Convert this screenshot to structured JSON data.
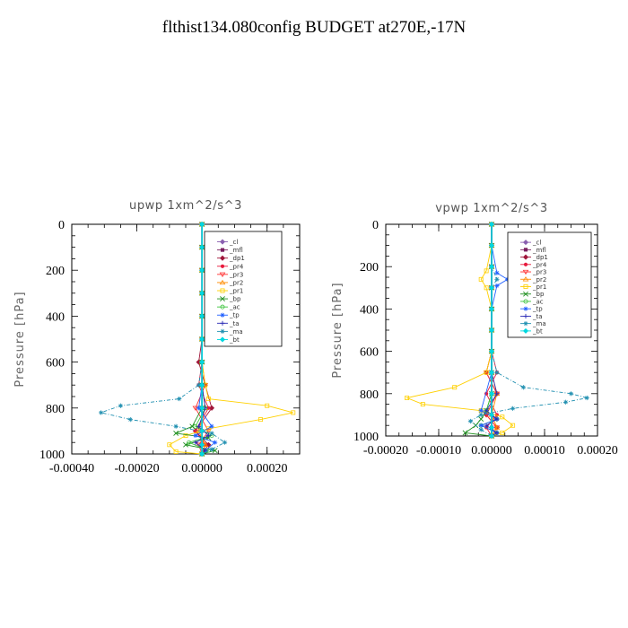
{
  "page": {
    "title": "flthist134.080config  BUDGET at270E,-17N"
  },
  "chart_data": [
    {
      "type": "line",
      "title": "upwp   1xm^2/s^3",
      "ylabel": "Pressure  [hPa]",
      "xlabel": "",
      "xlim": [
        -0.0004,
        0.0003
      ],
      "ylim": [
        1000,
        0
      ],
      "xticks": [
        -0.0004,
        -0.0002,
        0.0,
        0.0002
      ],
      "xticklabels": [
        "-0.00040",
        "-0.00020",
        "0.00000",
        "0.00020"
      ],
      "yticks": [
        0,
        200,
        400,
        600,
        800,
        1000
      ],
      "yticklabels": [
        "0",
        "200",
        "400",
        "600",
        "800",
        "1000"
      ],
      "legend": "top-right inside",
      "series": [
        {
          "name": "_cl",
          "color": "#8a5fb0",
          "marker": "diamond",
          "x": [
            0,
            0,
            0,
            0,
            0,
            0,
            0,
            0,
            0,
            0,
            0,
            0
          ],
          "y": [
            0,
            100,
            200,
            300,
            400,
            500,
            600,
            700,
            800,
            900,
            960,
            1000
          ]
        },
        {
          "name": "_mfl",
          "color": "#7a1f5f",
          "marker": "square",
          "x": [
            0,
            0,
            0,
            0,
            0,
            0,
            0,
            0,
            0,
            0,
            0,
            0
          ],
          "y": [
            0,
            100,
            200,
            300,
            400,
            500,
            600,
            700,
            800,
            900,
            960,
            1000
          ]
        },
        {
          "name": "_dp1",
          "color": "#a0163a",
          "marker": "diamond",
          "x": [
            0,
            0,
            0,
            0,
            0,
            0,
            -1e-05,
            1e-05,
            3e-05,
            -2e-05,
            2e-05,
            0.0
          ],
          "y": [
            0,
            100,
            200,
            300,
            400,
            500,
            600,
            700,
            800,
            900,
            960,
            1000
          ]
        },
        {
          "name": "_pr4",
          "color": "#e8193c",
          "marker": "circle",
          "x": [
            0,
            0,
            0,
            0,
            0,
            0,
            0,
            -1e-05,
            2e-05,
            -2e-05,
            1e-05,
            0
          ],
          "y": [
            0,
            100,
            200,
            300,
            400,
            500,
            600,
            700,
            800,
            900,
            960,
            1000
          ]
        },
        {
          "name": "_pr3",
          "color": "#ff3030",
          "marker": "triangle-down",
          "x": [
            0,
            0,
            0,
            0,
            0,
            0,
            0,
            1e-05,
            -2e-05,
            2e-05,
            -1e-05,
            0
          ],
          "y": [
            0,
            100,
            200,
            300,
            400,
            500,
            600,
            700,
            800,
            900,
            960,
            1000
          ]
        },
        {
          "name": "_pr2",
          "color": "#ff8c00",
          "marker": "triangle-up",
          "x": [
            0,
            0,
            0,
            0,
            0,
            0,
            0,
            0,
            1e-05,
            -1e-05,
            1e-05,
            0
          ],
          "y": [
            0,
            100,
            200,
            300,
            400,
            500,
            600,
            700,
            800,
            900,
            960,
            1000
          ]
        },
        {
          "name": "_pr1",
          "color": "#ffd000",
          "marker": "square-open",
          "x": [
            0,
            0,
            0,
            0,
            0,
            0,
            0,
            1e-05,
            2e-05,
            0.0002,
            0.00028,
            0.00018,
            2e-05,
            -5e-05,
            -0.0001,
            -8e-05,
            0.0
          ],
          "y": [
            0,
            100,
            200,
            300,
            400,
            500,
            600,
            700,
            760,
            790,
            820,
            850,
            890,
            920,
            960,
            990,
            1000
          ]
        },
        {
          "name": "_bp",
          "color": "#1f8f1f",
          "marker": "x",
          "x": [
            0,
            0,
            0,
            0,
            0,
            0,
            0,
            0,
            0,
            -3e-05,
            -8e-05,
            2e-05,
            -5e-05,
            4e-05,
            0
          ],
          "y": [
            0,
            100,
            200,
            300,
            400,
            500,
            600,
            700,
            800,
            880,
            910,
            930,
            960,
            985,
            1000
          ]
        },
        {
          "name": "_ac",
          "color": "#3ec43e",
          "marker": "circle-open",
          "x": [
            0,
            0,
            0,
            0,
            0,
            0,
            0,
            0,
            1e-05,
            -2e-05,
            3e-05,
            -4e-05,
            2e-05,
            0
          ],
          "y": [
            0,
            100,
            200,
            300,
            400,
            500,
            600,
            700,
            800,
            880,
            920,
            950,
            985,
            1000
          ]
        },
        {
          "name": "_tp",
          "color": "#2060ff",
          "marker": "asterisk",
          "x": [
            0,
            0,
            0,
            0,
            0,
            0,
            0,
            0,
            -1e-05,
            3e-05,
            -2e-05,
            4e-05,
            1e-05,
            0
          ],
          "y": [
            0,
            100,
            200,
            300,
            400,
            500,
            600,
            700,
            800,
            880,
            920,
            950,
            985,
            1000
          ]
        },
        {
          "name": "_ta",
          "color": "#2b2bb5",
          "marker": "plus",
          "x": [
            0,
            0,
            0,
            0,
            0,
            0,
            0,
            0,
            1e-05,
            -1e-05,
            2e-05,
            -2e-05,
            1e-05,
            0
          ],
          "y": [
            0,
            100,
            200,
            300,
            400,
            500,
            600,
            700,
            800,
            880,
            920,
            950,
            985,
            1000
          ]
        },
        {
          "name": "_ma",
          "color": "#1f8fb0",
          "marker": "asterisk",
          "x": [
            0,
            0,
            0,
            0,
            0,
            0,
            0,
            -1e-05,
            -7e-05,
            -0.00025,
            -0.00031,
            -0.00022,
            -8e-05,
            3e-05,
            7e-05,
            3e-05,
            0
          ],
          "y": [
            0,
            100,
            200,
            300,
            400,
            500,
            600,
            700,
            760,
            790,
            820,
            850,
            880,
            910,
            950,
            980,
            1000
          ]
        },
        {
          "name": "_bt",
          "color": "#00d8e0",
          "marker": "diamond-filled",
          "x": [
            0,
            0,
            0,
            0,
            0,
            0,
            0,
            0,
            0,
            0,
            0,
            0
          ],
          "y": [
            0,
            100,
            200,
            300,
            400,
            500,
            600,
            700,
            800,
            900,
            960,
            1000
          ]
        }
      ]
    },
    {
      "type": "line",
      "title": "vpwp   1xm^2/s^3",
      "ylabel": "Pressure  [hPa]",
      "xlabel": "",
      "xlim": [
        -0.0002,
        0.0002
      ],
      "ylim": [
        1000,
        0
      ],
      "xticks": [
        -0.0002,
        -0.0001,
        0.0,
        0.0001,
        0.0002
      ],
      "xticklabels": [
        "-0.00020",
        "-0.00010",
        "0.00000",
        "0.00010",
        "0.00020"
      ],
      "yticks": [
        0,
        200,
        400,
        600,
        800,
        1000
      ],
      "yticklabels": [
        "0",
        "200",
        "400",
        "600",
        "800",
        "1000"
      ],
      "legend": "top-right inside",
      "series": [
        {
          "name": "_cl",
          "color": "#8a5fb0",
          "marker": "diamond",
          "x": [
            0,
            0,
            0,
            0,
            0,
            0,
            0,
            0,
            0,
            0,
            0,
            0
          ],
          "y": [
            0,
            100,
            200,
            300,
            400,
            500,
            600,
            700,
            800,
            900,
            960,
            1000
          ]
        },
        {
          "name": "_mfl",
          "color": "#7a1f5f",
          "marker": "square",
          "x": [
            0,
            0,
            0,
            0,
            0,
            0,
            0,
            0,
            0,
            0,
            0,
            0
          ],
          "y": [
            0,
            100,
            200,
            300,
            400,
            500,
            600,
            700,
            800,
            900,
            960,
            1000
          ]
        },
        {
          "name": "_dp1",
          "color": "#a0163a",
          "marker": "diamond",
          "x": [
            0,
            0,
            0,
            0,
            0,
            0,
            0,
            -1e-05,
            1e-05,
            -1e-05,
            1e-05,
            0
          ],
          "y": [
            0,
            100,
            200,
            300,
            400,
            500,
            600,
            700,
            800,
            900,
            960,
            1000
          ]
        },
        {
          "name": "_pr4",
          "color": "#e8193c",
          "marker": "circle",
          "x": [
            0,
            0,
            0,
            0,
            0,
            0,
            0,
            1e-05,
            -1e-05,
            1e-05,
            -1e-05,
            0
          ],
          "y": [
            0,
            100,
            200,
            300,
            400,
            500,
            600,
            700,
            800,
            900,
            960,
            1000
          ]
        },
        {
          "name": "_pr3",
          "color": "#ff3030",
          "marker": "triangle-down",
          "x": [
            0,
            0,
            0,
            0,
            0,
            0,
            0,
            -1e-05,
            1e-05,
            -1e-05,
            1e-05,
            0
          ],
          "y": [
            0,
            100,
            200,
            300,
            400,
            500,
            600,
            700,
            800,
            900,
            960,
            1000
          ]
        },
        {
          "name": "_pr2",
          "color": "#ff8c00",
          "marker": "triangle-up",
          "x": [
            0,
            0,
            0,
            0,
            0,
            0,
            0,
            0,
            1e-05,
            0,
            1e-05,
            0
          ],
          "y": [
            0,
            100,
            200,
            300,
            400,
            500,
            600,
            700,
            800,
            900,
            960,
            1000
          ]
        },
        {
          "name": "_pr1",
          "color": "#ffd000",
          "marker": "square-open",
          "x": [
            0,
            0,
            -1e-05,
            -2e-05,
            -1e-05,
            0,
            0,
            0,
            -1e-05,
            -7e-05,
            -0.00016,
            -0.00013,
            -2e-05,
            2e-05,
            4e-05,
            2e-05,
            0
          ],
          "y": [
            0,
            100,
            220,
            260,
            300,
            400,
            500,
            600,
            700,
            770,
            820,
            850,
            880,
            910,
            950,
            985,
            1000
          ]
        },
        {
          "name": "_bp",
          "color": "#1f8f1f",
          "marker": "x",
          "x": [
            0,
            0,
            0,
            0,
            0,
            0,
            0,
            0,
            0,
            -1e-05,
            -2e-05,
            -3e-05,
            -5e-05,
            0
          ],
          "y": [
            0,
            100,
            200,
            300,
            400,
            500,
            600,
            700,
            800,
            880,
            920,
            950,
            985,
            1000
          ]
        },
        {
          "name": "_ac",
          "color": "#3ec43e",
          "marker": "circle-open",
          "x": [
            0,
            0,
            0,
            0,
            0,
            0,
            0,
            0,
            0,
            -1e-05,
            1e-05,
            -2e-05,
            1e-05,
            0
          ],
          "y": [
            0,
            100,
            200,
            300,
            400,
            500,
            600,
            700,
            800,
            880,
            920,
            950,
            985,
            1000
          ]
        },
        {
          "name": "_tp",
          "color": "#2060ff",
          "marker": "asterisk",
          "x": [
            0,
            0,
            1e-05,
            3e-05,
            1e-05,
            0,
            0,
            0,
            0,
            -2e-05,
            1e-05,
            -2e-05,
            1e-05,
            0
          ],
          "y": [
            0,
            100,
            230,
            260,
            290,
            400,
            500,
            600,
            700,
            880,
            920,
            950,
            985,
            1000
          ]
        },
        {
          "name": "_ta",
          "color": "#2b2bb5",
          "marker": "plus",
          "x": [
            0,
            0,
            0,
            0,
            0,
            0,
            0,
            0,
            1e-05,
            -1e-05,
            1e-05,
            -1e-05,
            1e-05,
            0
          ],
          "y": [
            0,
            100,
            200,
            300,
            400,
            500,
            600,
            700,
            800,
            880,
            920,
            950,
            985,
            1000
          ]
        },
        {
          "name": "_ma",
          "color": "#1f8fb0",
          "marker": "asterisk",
          "x": [
            0,
            0,
            0,
            1e-05,
            0,
            0,
            0,
            0,
            1e-05,
            6e-05,
            0.00015,
            0.00018,
            0.00014,
            4e-05,
            -2e-05,
            -4e-05,
            -2e-05,
            0
          ],
          "y": [
            0,
            100,
            200,
            260,
            300,
            400,
            500,
            600,
            700,
            770,
            800,
            820,
            840,
            870,
            900,
            930,
            970,
            1000
          ]
        },
        {
          "name": "_bt",
          "color": "#00d8e0",
          "marker": "diamond-filled",
          "x": [
            0,
            0,
            0,
            0,
            0,
            0,
            0,
            0,
            0,
            0,
            0,
            0
          ],
          "y": [
            0,
            100,
            200,
            300,
            400,
            500,
            600,
            700,
            800,
            900,
            960,
            1000
          ]
        }
      ]
    }
  ]
}
